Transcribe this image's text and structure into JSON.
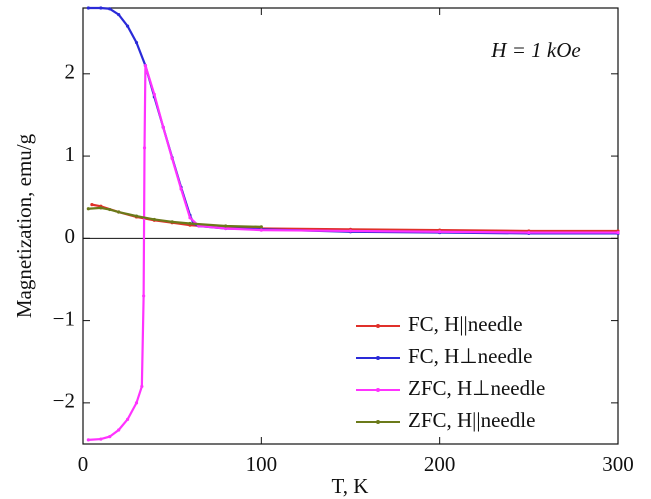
{
  "chart_data": {
    "type": "line",
    "annotation": "H = 1 kOe",
    "xlabel": "T, K",
    "ylabel": "Magnetization, emu/g",
    "xlim": [
      0,
      300
    ],
    "xticks": [
      0,
      100,
      200,
      300
    ],
    "ylim": [
      -2.5,
      2.8
    ],
    "yticks": [
      {
        "value": -2,
        "label": "−2"
      },
      {
        "value": -1,
        "label": "−1"
      },
      0,
      1,
      2
    ],
    "zero_line": true,
    "legend": "lower right",
    "series": [
      {
        "name": "FC, H||needle",
        "color": "#e0302a",
        "x": [
          5,
          10,
          20,
          30,
          40,
          50,
          60,
          80,
          100,
          150,
          200,
          250,
          300
        ],
        "values": [
          0.41,
          0.39,
          0.32,
          0.26,
          0.22,
          0.19,
          0.16,
          0.13,
          0.12,
          0.11,
          0.1,
          0.09,
          0.09
        ]
      },
      {
        "name": "FC, H⊥needle",
        "color": "#2a2ad8",
        "x": [
          3,
          10,
          15,
          20,
          25,
          30,
          35,
          40,
          45,
          50,
          55,
          60,
          62,
          65,
          80,
          100,
          150,
          200,
          250,
          300
        ],
        "values": [
          2.8,
          2.8,
          2.79,
          2.72,
          2.58,
          2.38,
          2.1,
          1.72,
          1.35,
          0.98,
          0.62,
          0.28,
          0.18,
          0.15,
          0.12,
          0.11,
          0.08,
          0.07,
          0.06,
          0.06
        ]
      },
      {
        "name": "ZFC, H⊥needle",
        "color": "#ff33ff",
        "x": [
          3,
          10,
          15,
          20,
          25,
          30,
          33,
          34,
          34.5,
          35,
          40,
          45,
          50,
          55,
          60,
          65,
          80,
          100,
          150,
          200,
          250,
          300
        ],
        "values": [
          -2.45,
          -2.44,
          -2.41,
          -2.33,
          -2.2,
          -2.0,
          -1.8,
          -0.7,
          1.1,
          2.1,
          1.75,
          1.35,
          0.97,
          0.6,
          0.25,
          0.15,
          0.12,
          0.1,
          0.09,
          0.08,
          0.07,
          0.07
        ]
      },
      {
        "name": "ZFC, H||needle",
        "color": "#6b7a1a",
        "x": [
          3,
          10,
          15,
          20,
          30,
          40,
          50,
          60,
          80,
          100
        ],
        "values": [
          0.36,
          0.37,
          0.35,
          0.32,
          0.27,
          0.23,
          0.2,
          0.18,
          0.15,
          0.14
        ]
      }
    ]
  }
}
